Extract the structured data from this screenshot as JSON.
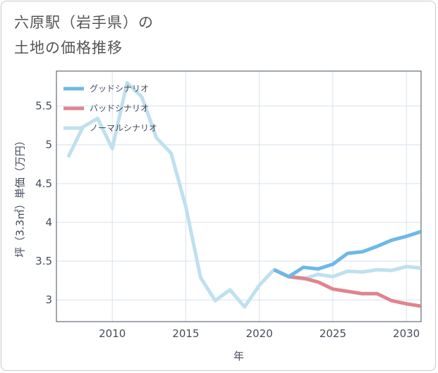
{
  "title_lines": [
    "六原駅（岩手県）の",
    "土地の価格推移"
  ],
  "chart_data": {
    "type": "line",
    "xlabel": "年",
    "ylabel": "坪（3.3㎡）単価（万円）",
    "xlim": [
      2006.2,
      2031
    ],
    "ylim": [
      2.72,
      5.95
    ],
    "xticks": [
      2010,
      2015,
      2020,
      2025,
      2030
    ],
    "yticks": [
      3,
      3.5,
      4,
      4.5,
      5,
      5.5
    ],
    "ytick_labels": [
      "3",
      "3.5",
      "4",
      "4.5",
      "5",
      "5.5"
    ],
    "grid": true,
    "legend_position": "top-left",
    "series": [
      {
        "name": "グッドシナリオ",
        "color": "#6db8e8",
        "x": [
          2021,
          2022,
          2023,
          2024,
          2025,
          2026,
          2027,
          2028,
          2029,
          2030,
          2031
        ],
        "values": [
          3.39,
          3.3,
          3.42,
          3.4,
          3.46,
          3.6,
          3.62,
          3.69,
          3.77,
          3.82,
          3.88
        ]
      },
      {
        "name": "バッドシナリオ",
        "color": "#de858e",
        "x": [
          2021,
          2022,
          2023,
          2024,
          2025,
          2026,
          2027,
          2028,
          2029,
          2030,
          2031
        ],
        "values": [
          3.39,
          3.3,
          3.28,
          3.23,
          3.14,
          3.11,
          3.08,
          3.08,
          2.99,
          2.95,
          2.92
        ]
      },
      {
        "name": "ノーマルシナリオ",
        "color": "#bfe0ee",
        "x": [
          2007,
          2008,
          2009,
          2010,
          2011,
          2012,
          2013,
          2014,
          2015,
          2016,
          2017,
          2018,
          2019,
          2020,
          2021,
          2022,
          2023,
          2024,
          2025,
          2026,
          2027,
          2028,
          2029,
          2030,
          2031
        ],
        "values": [
          4.84,
          5.23,
          5.34,
          4.95,
          5.8,
          5.62,
          5.09,
          4.89,
          4.2,
          3.29,
          2.99,
          3.13,
          2.91,
          3.19,
          3.39,
          3.3,
          3.27,
          3.33,
          3.3,
          3.37,
          3.36,
          3.39,
          3.38,
          3.43,
          3.41
        ]
      }
    ]
  }
}
